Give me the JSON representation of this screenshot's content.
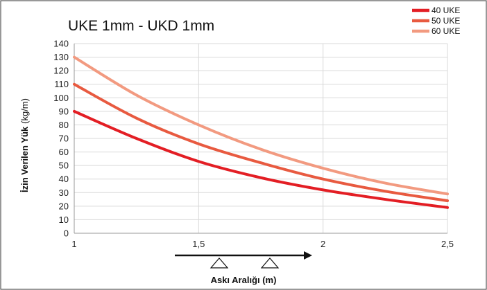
{
  "chart_data": {
    "type": "line",
    "title": "UKE 1mm - UKD 1mm",
    "xlabel": "Askı Aralığı (m)",
    "ylabel_bold": "İzin Verilen Yük",
    "ylabel_unit": "(kg/m)",
    "xlim": [
      1,
      2.5
    ],
    "ylim": [
      0,
      140
    ],
    "x_ticks": [
      1,
      1.5,
      2,
      2.5
    ],
    "x_tick_labels": [
      "1",
      "1,5",
      "2",
      "2,5"
    ],
    "y_ticks": [
      0,
      10,
      20,
      30,
      40,
      50,
      60,
      70,
      80,
      90,
      100,
      110,
      120,
      130,
      140
    ],
    "grid": true,
    "legend_position": "top-right",
    "series": [
      {
        "name": "40 UKE",
        "color": "#e31e24",
        "x": [
          1,
          1.25,
          1.5,
          1.75,
          2,
          2.25,
          2.5
        ],
        "y": [
          90,
          70,
          53,
          41,
          32,
          25,
          19
        ]
      },
      {
        "name": "50 UKE",
        "color": "#e85a40",
        "x": [
          1,
          1.25,
          1.5,
          1.75,
          2,
          2.25,
          2.5
        ],
        "y": [
          110,
          85,
          66,
          52,
          40,
          31,
          24
        ]
      },
      {
        "name": "60 UKE",
        "color": "#f29a80",
        "x": [
          1,
          1.25,
          1.5,
          1.75,
          2,
          2.25,
          2.5
        ],
        "y": [
          130,
          102,
          80,
          62,
          48,
          37,
          29
        ]
      }
    ]
  }
}
